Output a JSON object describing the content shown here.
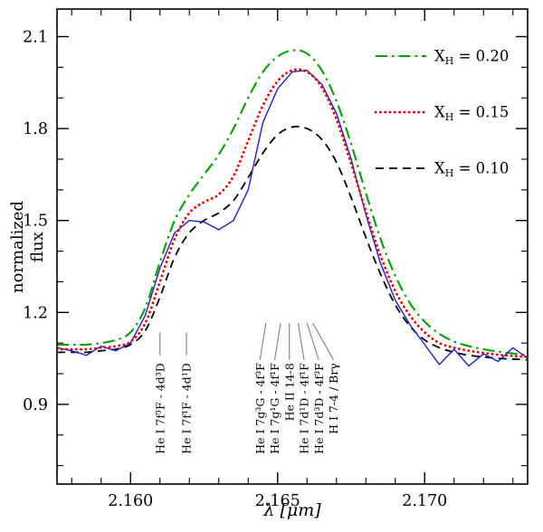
{
  "figure": {
    "background": "#ffffff",
    "frame_color": "#000000"
  },
  "chart_data": {
    "type": "line",
    "title": "",
    "xlabel": "λ [μm]",
    "ylabel": "normalized flux",
    "xlim": [
      2.1575,
      2.1735
    ],
    "ylim": [
      0.64,
      2.19
    ],
    "grid": false,
    "x_ticks": {
      "major": [
        2.16,
        2.165,
        2.17
      ],
      "labels": [
        "2.160",
        "2.165",
        "2.170"
      ],
      "minor_step": 0.001
    },
    "y_ticks": {
      "major": [
        0.9,
        1.2,
        1.5,
        1.8,
        2.1
      ],
      "labels": [
        "0.9",
        "1.2",
        "1.5",
        "1.8",
        "2.1"
      ],
      "minor_step": 0.1
    },
    "x": [
      2.1575,
      2.158,
      2.1585,
      2.159,
      2.1595,
      2.16,
      2.1605,
      2.161,
      2.1615,
      2.162,
      2.1625,
      2.163,
      2.1635,
      2.164,
      2.1645,
      2.165,
      2.1655,
      2.166,
      2.1665,
      2.167,
      2.1675,
      2.168,
      2.1685,
      2.169,
      2.1695,
      2.17,
      2.1705,
      2.171,
      2.1715,
      2.172,
      2.1725,
      2.173,
      2.1735
    ],
    "series": [
      {
        "name": "observed-spectrum",
        "color": "#2020cc",
        "style": "solid",
        "width": 1.4,
        "smooth": false,
        "values": [
          1.085,
          1.075,
          1.06,
          1.09,
          1.075,
          1.1,
          1.19,
          1.345,
          1.46,
          1.5,
          1.495,
          1.47,
          1.5,
          1.6,
          1.82,
          1.93,
          1.985,
          1.99,
          1.945,
          1.85,
          1.7,
          1.52,
          1.36,
          1.24,
          1.16,
          1.095,
          1.03,
          1.08,
          1.025,
          1.065,
          1.04,
          1.085,
          1.05
        ]
      },
      {
        "name": "X_H = 0.20",
        "color": "#00a000",
        "style": "dashdot",
        "width": 2.1,
        "smooth": true,
        "values": [
          1.095,
          1.095,
          1.095,
          1.1,
          1.11,
          1.135,
          1.215,
          1.365,
          1.5,
          1.585,
          1.65,
          1.715,
          1.8,
          1.9,
          1.985,
          2.035,
          2.055,
          2.045,
          1.99,
          1.89,
          1.75,
          1.59,
          1.44,
          1.32,
          1.23,
          1.17,
          1.13,
          1.105,
          1.09,
          1.08,
          1.072,
          1.066,
          1.06
        ]
      },
      {
        "name": "X_H = 0.15",
        "color": "#e80000",
        "style": "dotted",
        "width": 2.8,
        "smooth": true,
        "values": [
          1.08,
          1.08,
          1.08,
          1.085,
          1.09,
          1.105,
          1.165,
          1.3,
          1.44,
          1.525,
          1.56,
          1.585,
          1.645,
          1.76,
          1.875,
          1.955,
          1.99,
          1.985,
          1.935,
          1.83,
          1.685,
          1.53,
          1.385,
          1.27,
          1.19,
          1.135,
          1.1,
          1.085,
          1.075,
          1.068,
          1.062,
          1.058,
          1.055
        ]
      },
      {
        "name": "X_H = 0.10",
        "color": "#000000",
        "style": "dashed",
        "width": 1.8,
        "smooth": true,
        "values": [
          1.07,
          1.07,
          1.07,
          1.075,
          1.08,
          1.095,
          1.14,
          1.25,
          1.38,
          1.46,
          1.5,
          1.525,
          1.565,
          1.64,
          1.72,
          1.78,
          1.805,
          1.8,
          1.765,
          1.69,
          1.575,
          1.445,
          1.325,
          1.225,
          1.155,
          1.11,
          1.085,
          1.07,
          1.06,
          1.055,
          1.05,
          1.048,
          1.045
        ]
      }
    ],
    "legend": {
      "position": "top-right",
      "entries": [
        {
          "text": "X_H = 0.20",
          "sym": "X",
          "sub": "H",
          "rest": " = 0.20",
          "series_index": 1
        },
        {
          "text": "X_H = 0.15",
          "sym": "X",
          "sub": "H",
          "rest": " = 0.15",
          "series_index": 2
        },
        {
          "text": "X_H = 0.10",
          "sym": "X",
          "sub": "H",
          "rest": " = 0.10",
          "series_index": 3
        }
      ]
    },
    "line_ids": {
      "color": "#808080",
      "label_anchor_flux": 1.035,
      "entries": [
        {
          "label": "He I 7f³F - 4d³D",
          "label_x": 2.161,
          "mark_x": 2.161,
          "mark_y": [
            1.06,
            1.135
          ]
        },
        {
          "label": "He I 7f¹F - 4d¹D",
          "label_x": 2.1619,
          "mark_x": 2.1619,
          "mark_y": [
            1.06,
            1.135
          ]
        },
        {
          "label": "He I 7g³G - 4f³F",
          "label_x": 2.1644,
          "mark_x": 2.1646,
          "mark_y": [
            1.045,
            1.165
          ]
        },
        {
          "label": "He I 7g¹G - 4f¹F",
          "label_x": 2.1649,
          "mark_x": 2.1651,
          "mark_y": [
            1.045,
            1.165
          ]
        },
        {
          "label": "He II 14-8",
          "label_x": 2.1654,
          "mark_x": 2.1654,
          "mark_y": [
            1.045,
            1.165
          ]
        },
        {
          "label": "He I 7d¹D - 4f¹F",
          "label_x": 2.1659,
          "mark_x": 2.1657,
          "mark_y": [
            1.045,
            1.165
          ]
        },
        {
          "label": "He I 7d³D - 4f³F",
          "label_x": 2.1664,
          "mark_x": 2.166,
          "mark_y": [
            1.045,
            1.165
          ]
        },
        {
          "label": "H I 7-4 / Brγ",
          "label_x": 2.1669,
          "mark_x": 2.1662,
          "mark_y": [
            1.045,
            1.165
          ]
        }
      ]
    }
  }
}
